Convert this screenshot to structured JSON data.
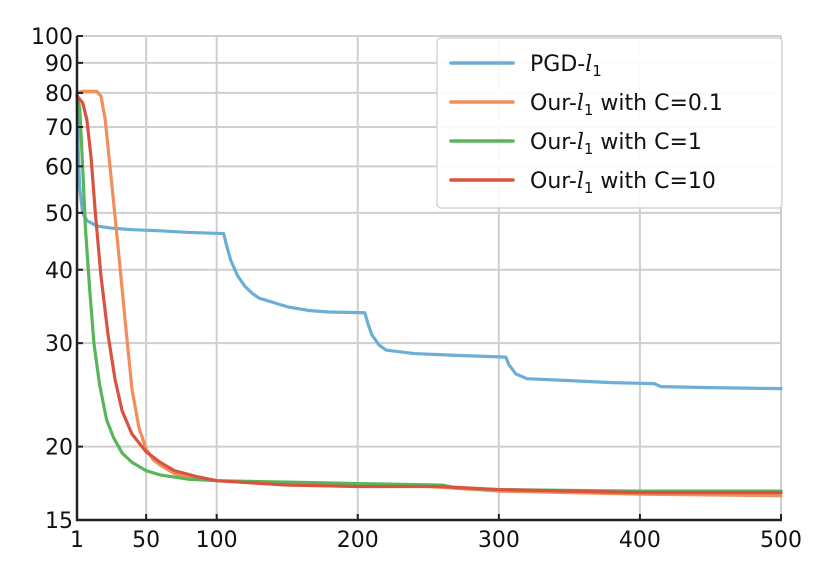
{
  "chart_data": {
    "type": "line",
    "title": "",
    "xlabel": "",
    "ylabel": "",
    "xscale": "linear",
    "yscale": "log",
    "xlim": [
      1,
      500
    ],
    "ylim": [
      15,
      100
    ],
    "grid": true,
    "legend_position": "top-right",
    "xticks": [
      1,
      50,
      100,
      200,
      300,
      400,
      500
    ],
    "xtick_labels": [
      "1",
      "50",
      "100",
      "200",
      "300",
      "400",
      "500"
    ],
    "yticks": [
      15,
      20,
      30,
      40,
      50,
      60,
      70,
      80,
      90,
      100
    ],
    "ytick_labels": [
      "15",
      "20",
      "30",
      "40",
      "50",
      "60",
      "70",
      "80",
      "90",
      "100"
    ],
    "series": [
      {
        "name": "PGD-l1",
        "color": "#6baed6",
        "points": [
          [
            1,
            80
          ],
          [
            2,
            62
          ],
          [
            3,
            55
          ],
          [
            5,
            50
          ],
          [
            8,
            48.5
          ],
          [
            15,
            47.5
          ],
          [
            25,
            47.1
          ],
          [
            40,
            46.8
          ],
          [
            60,
            46.6
          ],
          [
            80,
            46.3
          ],
          [
            105,
            46.1
          ],
          [
            107,
            44
          ],
          [
            110,
            41.5
          ],
          [
            115,
            39
          ],
          [
            120,
            37.5
          ],
          [
            125,
            36.5
          ],
          [
            130,
            35.8
          ],
          [
            140,
            35.2
          ],
          [
            150,
            34.6
          ],
          [
            165,
            34.1
          ],
          [
            180,
            33.9
          ],
          [
            205,
            33.8
          ],
          [
            207,
            32.5
          ],
          [
            210,
            31
          ],
          [
            215,
            29.8
          ],
          [
            220,
            29.2
          ],
          [
            240,
            28.8
          ],
          [
            270,
            28.6
          ],
          [
            305,
            28.4
          ],
          [
            307,
            27.6
          ],
          [
            312,
            26.6
          ],
          [
            320,
            26.1
          ],
          [
            350,
            25.9
          ],
          [
            380,
            25.7
          ],
          [
            410,
            25.6
          ],
          [
            415,
            25.3
          ],
          [
            450,
            25.2
          ],
          [
            500,
            25.1
          ]
        ]
      },
      {
        "name": "Our-l1 with C=0.1",
        "color": "#f28e5c",
        "points": [
          [
            1,
            80
          ],
          [
            5,
            80.5
          ],
          [
            15,
            80.5
          ],
          [
            18,
            79
          ],
          [
            21,
            72
          ],
          [
            25,
            58
          ],
          [
            30,
            44
          ],
          [
            35,
            33
          ],
          [
            40,
            25
          ],
          [
            45,
            21.5
          ],
          [
            50,
            19.8
          ],
          [
            55,
            19
          ],
          [
            60,
            18.6
          ],
          [
            70,
            18
          ],
          [
            80,
            17.7
          ],
          [
            100,
            17.5
          ],
          [
            150,
            17.2
          ],
          [
            200,
            17.2
          ],
          [
            250,
            17.1
          ],
          [
            300,
            16.8
          ],
          [
            400,
            16.6
          ],
          [
            500,
            16.5
          ]
        ]
      },
      {
        "name": "Our-l1 with C=1",
        "color": "#5ab55a",
        "points": [
          [
            1,
            80
          ],
          [
            3,
            75
          ],
          [
            5,
            60
          ],
          [
            7,
            47
          ],
          [
            10,
            37
          ],
          [
            13,
            30
          ],
          [
            17,
            25.5
          ],
          [
            22,
            22.2
          ],
          [
            27,
            20.7
          ],
          [
            33,
            19.5
          ],
          [
            40,
            18.8
          ],
          [
            50,
            18.2
          ],
          [
            60,
            17.9
          ],
          [
            80,
            17.6
          ],
          [
            100,
            17.5
          ],
          [
            150,
            17.4
          ],
          [
            200,
            17.3
          ],
          [
            260,
            17.2
          ],
          [
            270,
            17
          ],
          [
            300,
            16.9
          ],
          [
            400,
            16.8
          ],
          [
            500,
            16.8
          ]
        ]
      },
      {
        "name": "Our-l1 with C=10",
        "color": "#d9533f",
        "points": [
          [
            1,
            79
          ],
          [
            5,
            77
          ],
          [
            8,
            72
          ],
          [
            11,
            62
          ],
          [
            14,
            50
          ],
          [
            18,
            39
          ],
          [
            23,
            31
          ],
          [
            28,
            26
          ],
          [
            33,
            23
          ],
          [
            40,
            21
          ],
          [
            50,
            19.6
          ],
          [
            60,
            18.8
          ],
          [
            70,
            18.2
          ],
          [
            85,
            17.8
          ],
          [
            100,
            17.5
          ],
          [
            150,
            17.2
          ],
          [
            200,
            17.1
          ],
          [
            260,
            17.1
          ],
          [
            300,
            16.9
          ],
          [
            350,
            16.8
          ],
          [
            400,
            16.7
          ],
          [
            500,
            16.7
          ]
        ]
      }
    ]
  }
}
